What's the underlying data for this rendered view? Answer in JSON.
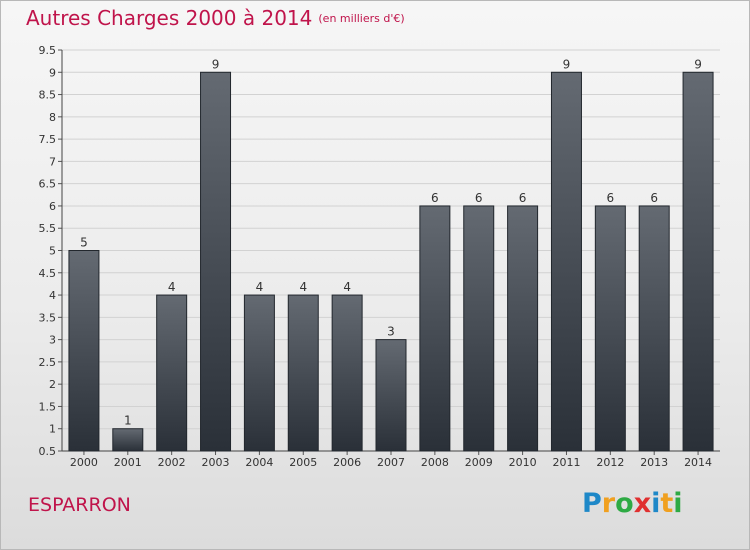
{
  "chart_data": {
    "type": "bar",
    "title": "Autres Charges 2000 à 2014",
    "unit_label": "(en milliers d'€)",
    "location": "ESPARRON",
    "categories": [
      "2000",
      "2001",
      "2002",
      "2003",
      "2004",
      "2005",
      "2006",
      "2007",
      "2008",
      "2009",
      "2010",
      "2011",
      "2012",
      "2013",
      "2014"
    ],
    "values": [
      5,
      1,
      4,
      9,
      4,
      4,
      4,
      3,
      6,
      6,
      6,
      9,
      6,
      6,
      9
    ],
    "ylim": [
      0.5,
      9.5
    ],
    "yticks": [
      0.5,
      1,
      1.5,
      2,
      2.5,
      3,
      3.5,
      4,
      4.5,
      5,
      5.5,
      6,
      6.5,
      7,
      7.5,
      8,
      8.5,
      9,
      9.5
    ],
    "ytick_labels": [
      "0.5",
      "1",
      "1.5",
      "2",
      "2.5",
      "3",
      "3.5",
      "4",
      "4.5",
      "5",
      "5.5",
      "6",
      "6.5",
      "7",
      "7.5",
      "8",
      "8.5",
      "9",
      "9.5"
    ],
    "grid": true
  },
  "logo": {
    "letters": [
      "P",
      "r",
      "o",
      "x",
      "i",
      "t",
      "i"
    ],
    "colors": [
      "#1e88c8",
      "#f0a020",
      "#2eaa44",
      "#e03030",
      "#1e88c8",
      "#f0a020",
      "#2eaa44"
    ]
  },
  "colors": {
    "bar_top": "#646a72",
    "bar_bottom": "#2a3038",
    "accent": "#c0144b"
  }
}
